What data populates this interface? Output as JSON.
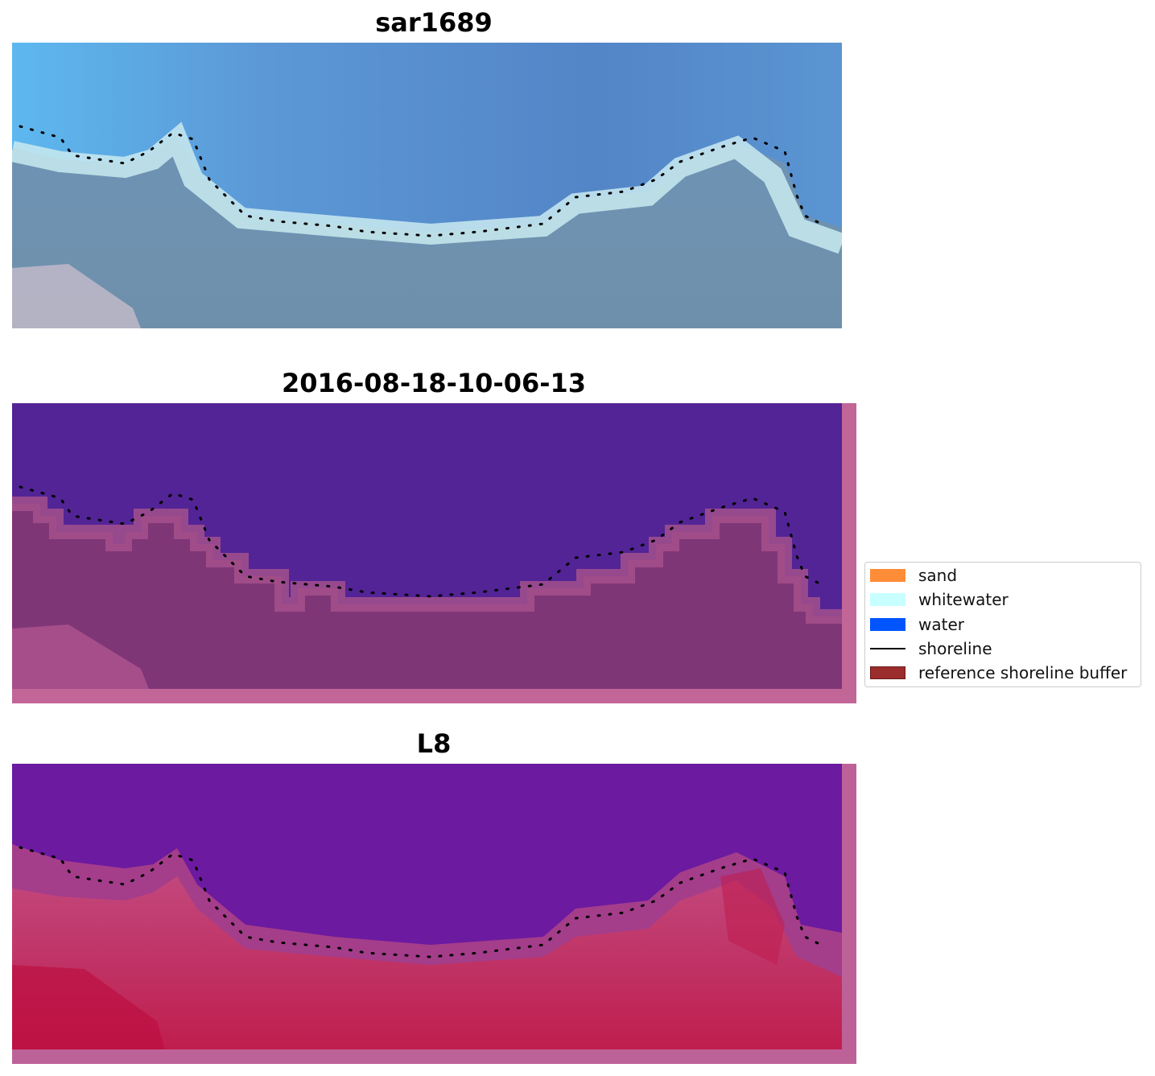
{
  "panels": [
    {
      "title": "sar1689"
    },
    {
      "title": "2016-08-18-10-06-13"
    },
    {
      "title": "L8"
    }
  ],
  "legend": [
    {
      "label": "sand",
      "color": "#ff8c37"
    },
    {
      "label": "whitewater",
      "color": "#c8ffff"
    },
    {
      "label": "water",
      "color": "#0055ff"
    },
    {
      "label": "shoreline",
      "color": "#000000"
    },
    {
      "label": "reference shoreline buffer",
      "color": "#9b2d2d"
    }
  ]
}
